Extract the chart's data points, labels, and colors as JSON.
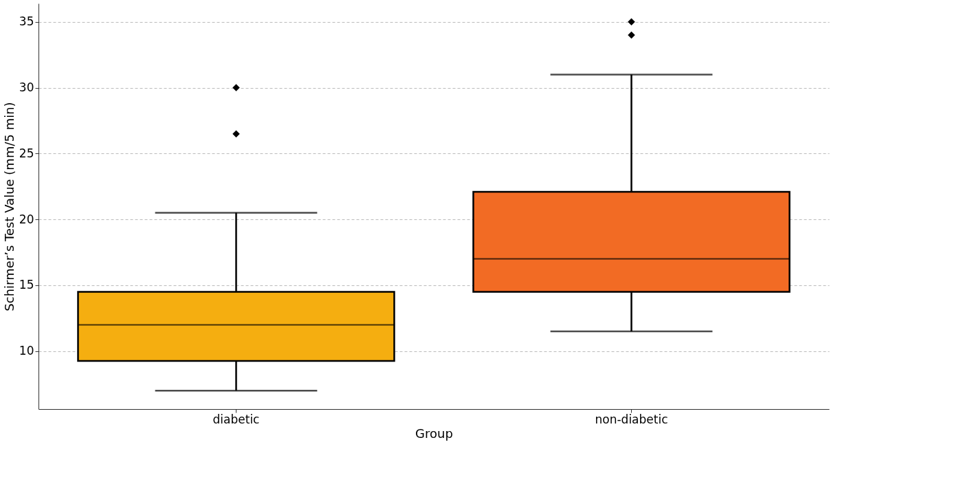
{
  "chart_data": {
    "type": "box",
    "xlabel": "Group",
    "ylabel": "Schirmer’s Test Value (mm/5 min)",
    "categories": [
      "diabetic",
      "non-diabetic"
    ],
    "colors": [
      "#f5ae10",
      "#f26b24"
    ],
    "boxes": [
      {
        "low": 7,
        "q1": 9.25,
        "median": 12,
        "q3": 14.5,
        "high": 20.5,
        "outliers": [
          26.5,
          30
        ]
      },
      {
        "low": 11.5,
        "q1": 14.5,
        "median": 17,
        "q3": 22.1,
        "high": 31,
        "outliers": [
          34,
          35
        ]
      }
    ],
    "ylim": [
      5.6,
      36.4
    ],
    "yticks": [
      10,
      15,
      20,
      25,
      30,
      35
    ],
    "grid": "y",
    "legend": false,
    "marker": "diamond"
  }
}
